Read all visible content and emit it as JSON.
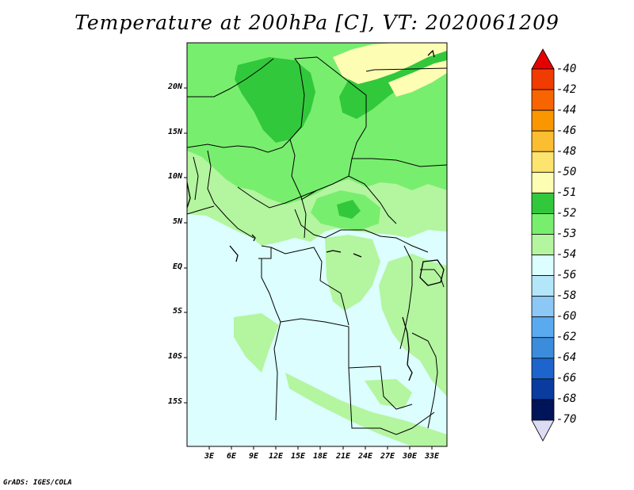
{
  "title": "Temperature at 200hPa [C], VT: 2020061209",
  "credit": "GrADS: IGES/COLA",
  "map": {
    "lat_labels": [
      "20N",
      "15N",
      "10N",
      "5N",
      "EQ",
      "5S",
      "10S",
      "15S"
    ],
    "lon_labels": [
      "3E",
      "6E",
      "9E",
      "12E",
      "15E",
      "18E",
      "21E",
      "24E",
      "27E",
      "30E",
      "33E"
    ]
  },
  "colorbar": {
    "labels": [
      "-40",
      "-42",
      "-44",
      "-46",
      "-48",
      "-50",
      "-51",
      "-52",
      "-53",
      "-54",
      "-56",
      "-58",
      "-60",
      "-62",
      "-64",
      "-66",
      "-68",
      "-70"
    ],
    "colors": [
      "#e60000",
      "#f03c00",
      "#f86400",
      "#fa9600",
      "#fbbe32",
      "#fde46e",
      "#fefdb4",
      "#32c83c",
      "#78ee6e",
      "#b4f5a0",
      "#dcfefe",
      "#b4e6fa",
      "#8cc8f5",
      "#5aaaf0",
      "#3c8cdc",
      "#1e64cd",
      "#0a3ca0",
      "#00145a",
      "#dcdcf5"
    ]
  },
  "colors": {
    "ocean_land_base": "#dcfefe",
    "light_green": "#b4f5a0",
    "mid_green": "#78ee6e",
    "dark_green": "#32c83c",
    "pale_yellow": "#fefdb4"
  }
}
